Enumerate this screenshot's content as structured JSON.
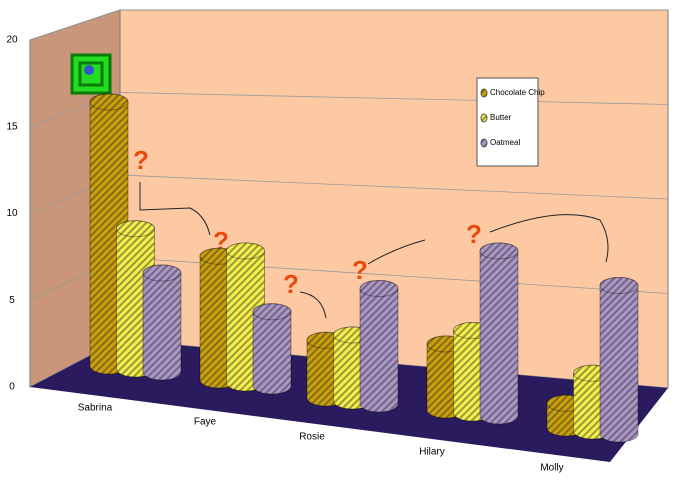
{
  "chart_data": {
    "type": "bar3d",
    "categories": [
      "Sabrina",
      "Faye",
      "Rosie",
      "Hilary",
      "Molly"
    ],
    "series": [
      {
        "name": "Chocolate Chip",
        "color": "#c9a20a",
        "values": [
          16,
          7.5,
          3.5,
          4,
          1.5
        ]
      },
      {
        "name": "Butter",
        "color": "#f2f04a",
        "values": [
          8.5,
          8,
          4,
          5,
          3.5
        ]
      },
      {
        "name": "Oatmeal",
        "color": "#a898c8",
        "values": [
          6,
          4.5,
          7,
          10,
          9
        ]
      }
    ],
    "ylim": [
      0,
      20
    ],
    "yticks": [
      0,
      5,
      10,
      15,
      20
    ],
    "grid": true,
    "legend": "top-right"
  }
}
